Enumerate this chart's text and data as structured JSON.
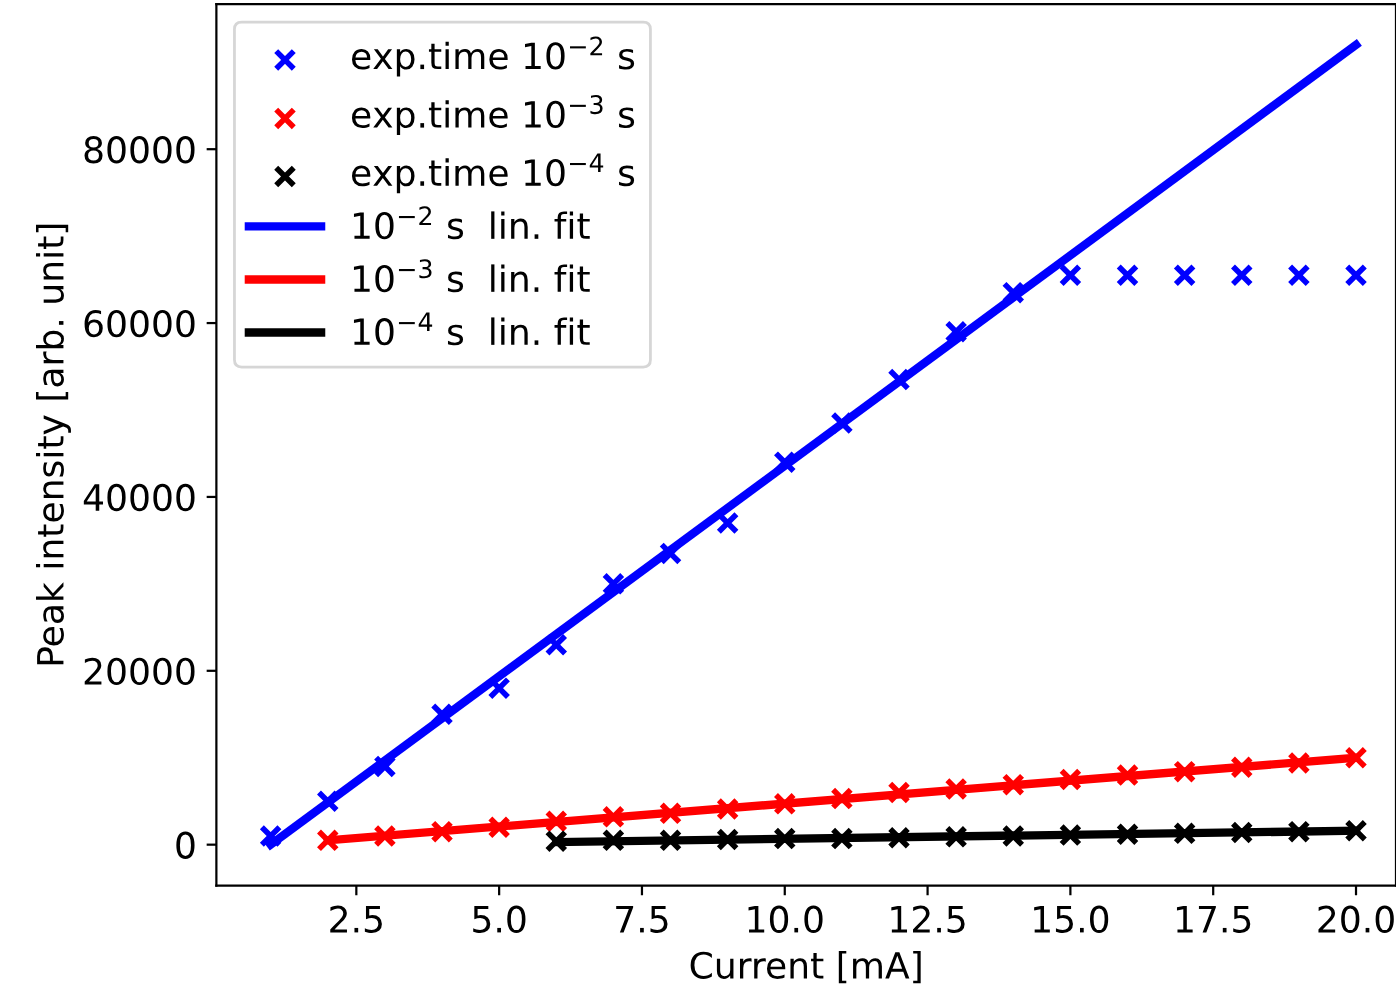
{
  "chart_data": {
    "type": "scatter",
    "xlabel": "Current [mA]",
    "ylabel": "Peak intensity [arb. unit]",
    "xlim": [
      0.05,
      20.7
    ],
    "ylim": [
      -4700,
      96700
    ],
    "xticks": [
      {
        "value": 2.5,
        "label": "2.5"
      },
      {
        "value": 5.0,
        "label": "5.0"
      },
      {
        "value": 7.5,
        "label": "7.5"
      },
      {
        "value": 10.0,
        "label": "10.0"
      },
      {
        "value": 12.5,
        "label": "12.5"
      },
      {
        "value": 15.0,
        "label": "15.0"
      },
      {
        "value": 17.5,
        "label": "17.5"
      },
      {
        "value": 20.0,
        "label": "20.0"
      }
    ],
    "yticks": [
      0,
      20000,
      40000,
      60000,
      80000
    ],
    "legend": "top left",
    "grid": false,
    "series": [
      {
        "marker": "cross",
        "name": "exp.time 10$^{−2}$ s",
        "color": "#0000ff",
        "x": [
          1,
          2,
          3,
          4,
          5,
          6,
          7,
          8,
          9,
          10,
          11,
          12,
          13,
          14,
          15,
          16,
          17,
          18,
          19,
          20
        ],
        "values": [
          1000,
          5000,
          9000,
          15000,
          18000,
          23000,
          30000,
          33500,
          37000,
          44000,
          48500,
          53500,
          59000,
          63500,
          65500,
          65500,
          65500,
          65500,
          65500,
          65500
        ]
      },
      {
        "marker": "cross",
        "name": "exp.time 10$^{−3}$ s",
        "color": "#ff0000",
        "x": [
          2,
          3,
          4,
          5,
          6,
          7,
          8,
          9,
          10,
          11,
          12,
          13,
          14,
          15,
          16,
          17,
          18,
          19,
          20
        ],
        "values": [
          500,
          1000,
          1500,
          2000,
          2700,
          3200,
          3600,
          4100,
          4700,
          5300,
          6000,
          6400,
          6900,
          7500,
          8000,
          8400,
          8900,
          9400,
          10000
        ]
      },
      {
        "marker": "cross",
        "name": "exp.time 10$^{−4}$ s",
        "color": "#000000",
        "x": [
          6,
          7,
          8,
          9,
          10,
          11,
          12,
          13,
          14,
          15,
          16,
          17,
          18,
          19,
          20
        ],
        "values": [
          400,
          500,
          500,
          600,
          700,
          700,
          800,
          900,
          1000,
          1100,
          1200,
          1300,
          1400,
          1500,
          1600
        ]
      },
      {
        "type": "line",
        "marker": "none",
        "line_style": "solid",
        "name": "10$^{−2}$ s  lin. fit",
        "color": "#0000ff",
        "x": [
          1,
          20
        ],
        "values": [
          0,
          92000
        ]
      },
      {
        "type": "line",
        "marker": "none",
        "line_style": "solid",
        "name": "10$^{−3}$ s  lin. fit",
        "color": "#ff0000",
        "x": [
          2,
          20
        ],
        "values": [
          500,
          10000
        ]
      },
      {
        "type": "line",
        "marker": "none",
        "line_style": "solid",
        "name": "10$^{−4}$ s  lin. fit",
        "color": "#000000",
        "x": [
          6,
          20
        ],
        "values": [
          300,
          1600
        ]
      }
    ]
  }
}
